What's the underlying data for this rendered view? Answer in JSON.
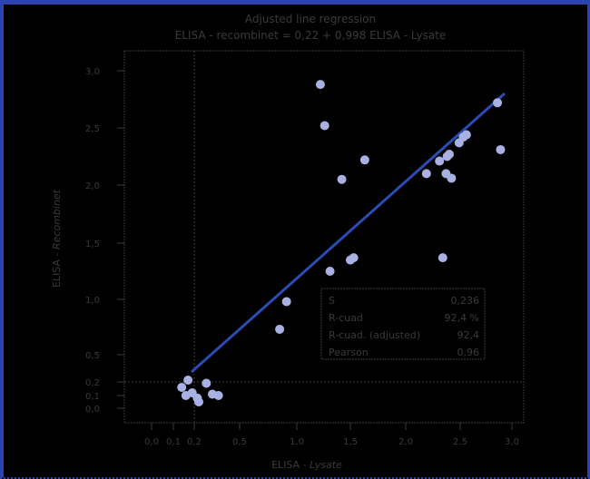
{
  "chart_data": {
    "type": "scatter",
    "title": "Adjusted line regression",
    "subtitle": "ELISA - recombinet = 0,22 + 0,998 ELISA - Lysate",
    "xlabel": "ELISA - Lysate",
    "ylabel": "ELISA - Recombinet",
    "xlim": [
      0,
      3.1
    ],
    "ylim": [
      0,
      3.1
    ],
    "x_ticks": [
      "0,0",
      "0,1",
      "0,2",
      "0,5",
      "1,0",
      "1,5",
      "2,0",
      "2,5",
      "3,0"
    ],
    "y_ticks": [
      "3,0",
      "2,5",
      "2,0",
      "1,5",
      "1,0",
      "0,5",
      "0,2",
      "0,1",
      "0,0"
    ],
    "reference_lines": {
      "x": 0.2,
      "y": 0.2
    },
    "regression": {
      "intercept": 0.22,
      "slope": 0.998,
      "x_from": 0.33,
      "x_to": 2.94
    },
    "points": [
      [
        1.22,
        2.88
      ],
      [
        1.26,
        2.52
      ],
      [
        1.63,
        2.22
      ],
      [
        1.42,
        2.05
      ],
      [
        2.86,
        2.72
      ],
      [
        2.89,
        2.31
      ],
      [
        2.56,
        2.44
      ],
      [
        2.53,
        2.42
      ],
      [
        2.49,
        2.37
      ],
      [
        2.4,
        2.27
      ],
      [
        2.38,
        2.25
      ],
      [
        2.31,
        2.21
      ],
      [
        2.19,
        2.1
      ],
      [
        2.37,
        2.1
      ],
      [
        2.42,
        2.06
      ],
      [
        2.34,
        1.37
      ],
      [
        1.53,
        1.37
      ],
      [
        1.5,
        1.35
      ],
      [
        1.31,
        1.25
      ],
      [
        0.91,
        0.98
      ],
      [
        0.85,
        0.73
      ],
      [
        0.17,
        0.22
      ],
      [
        0.14,
        0.16
      ],
      [
        0.19,
        0.12
      ],
      [
        0.16,
        0.1
      ],
      [
        0.22,
        0.08
      ],
      [
        0.28,
        0.19
      ],
      [
        0.32,
        0.11
      ],
      [
        0.36,
        0.1
      ],
      [
        0.23,
        0.05
      ]
    ],
    "stats": [
      {
        "label": "S",
        "value": "0,236"
      },
      {
        "label": "R-cuad",
        "value": "92,4 %"
      },
      {
        "label": "R-cuad. (adjusted)",
        "value": "92,4"
      },
      {
        "label": "Pearson",
        "value": "0,96"
      }
    ],
    "colors": {
      "line": "#2a4cb3",
      "point": "#a9b1e3",
      "border": "#2b44b0",
      "text": "#3a3a3a"
    }
  }
}
